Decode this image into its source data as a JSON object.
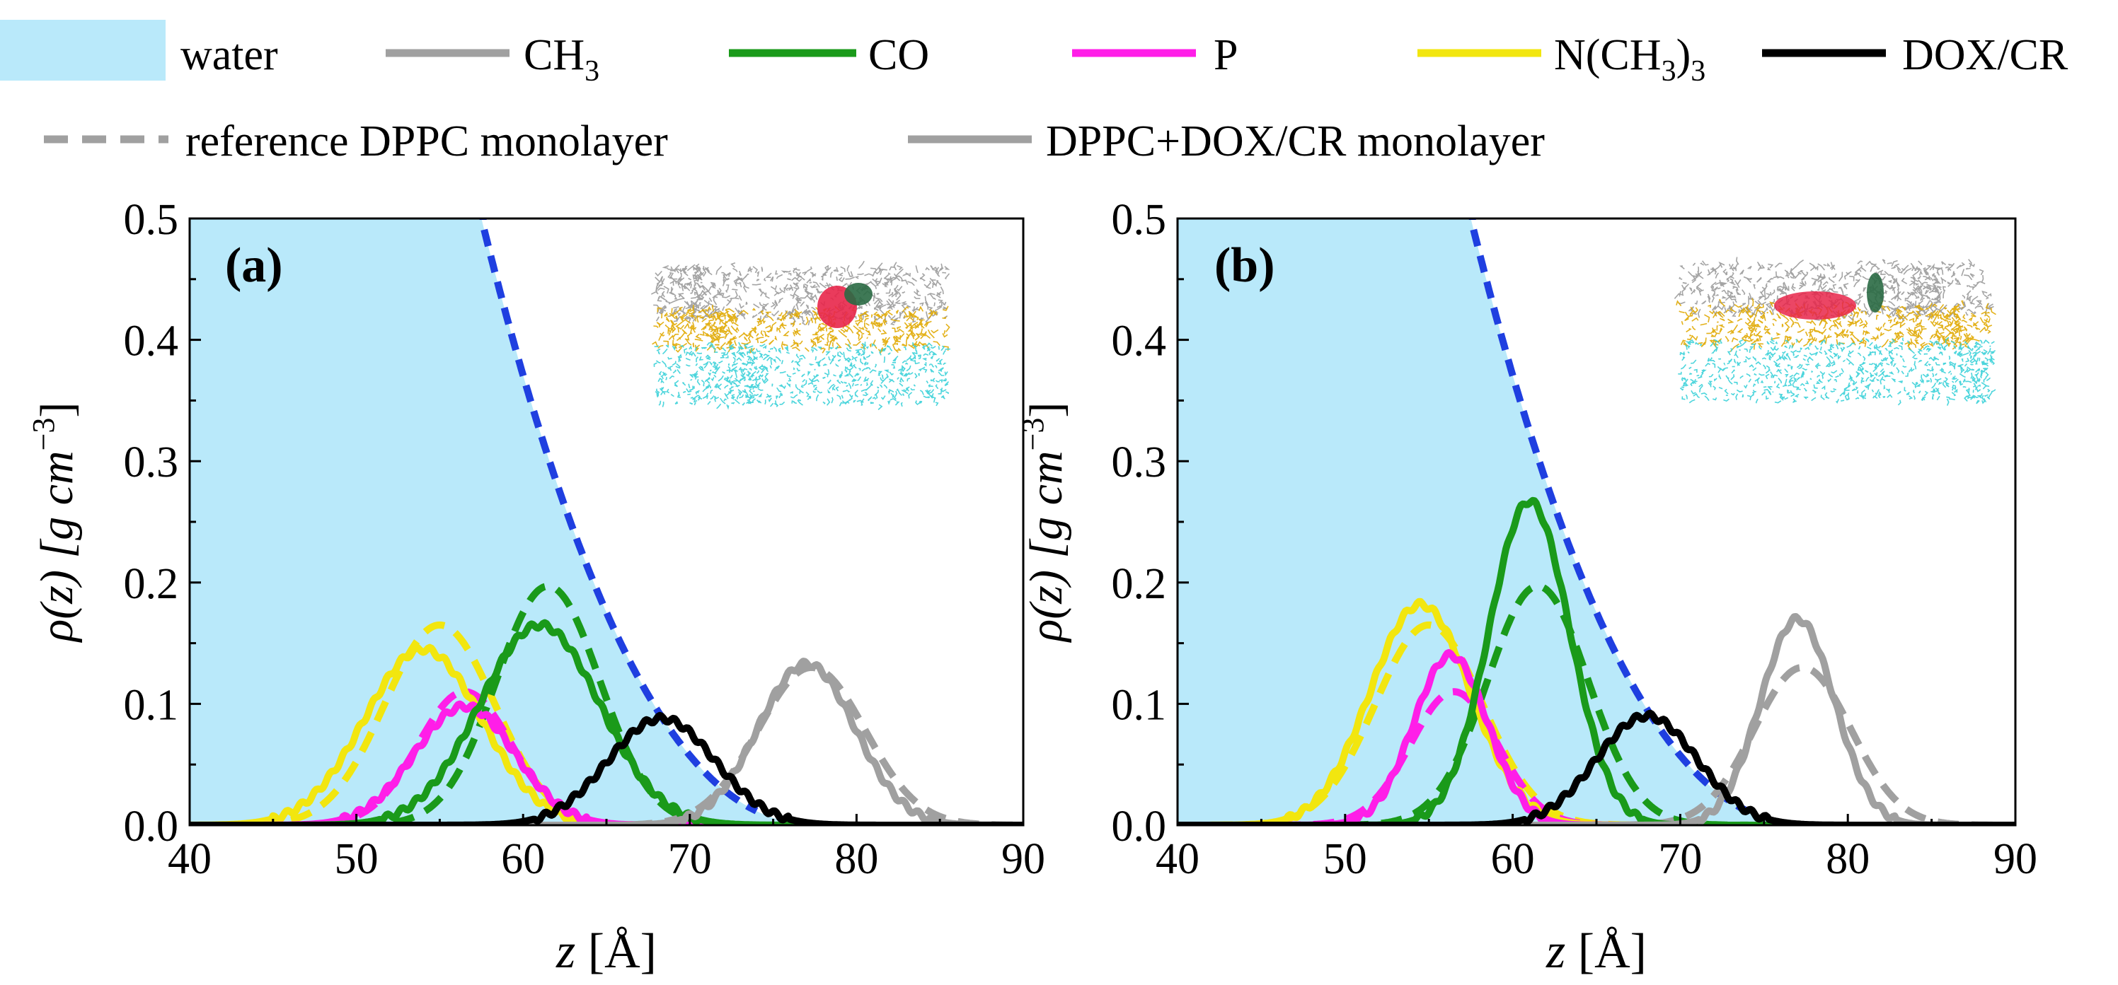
{
  "legend": {
    "items": [
      {
        "label": "water",
        "kind": "patch",
        "color": "#b9e9fa"
      },
      {
        "label": "CH",
        "sub": "3",
        "tail": "",
        "kind": "line",
        "color": "#a0a0a0"
      },
      {
        "label": "CO",
        "kind": "line",
        "color": "#1a9a1a"
      },
      {
        "label": "P",
        "kind": "line",
        "color": "#ff1ee8"
      },
      {
        "label": "N(CH",
        "sub": "3",
        "tail": ")",
        "sub2": "3",
        "kind": "line",
        "color": "#f2e60f"
      },
      {
        "label": "DOX/CR",
        "kind": "line",
        "color": "#000000"
      }
    ],
    "style_items": [
      {
        "label": "reference DPPC monolayer",
        "kind": "dashed",
        "color": "#a0a0a0"
      },
      {
        "label": "DPPC+DOX/CR monolayer",
        "kind": "solid",
        "color": "#a0a0a0"
      }
    ]
  },
  "colors": {
    "water": "#b9e9fa",
    "water_ref_edge": "#1f3fe0",
    "CH3": "#a0a0a0",
    "CO": "#1a9a1a",
    "P": "#ff1ee8",
    "NCH3": "#f2e60f",
    "DOX": "#000000"
  },
  "chart_data": [
    {
      "type": "line",
      "panel_label": "(a)",
      "xlabel": "z",
      "xunit": "[Å]",
      "ylabel": "ρ(z) [g cm",
      "ylabel_sup": "−3",
      "ylabel_tail": "]",
      "xlim": [
        40,
        90
      ],
      "ylim": [
        0,
        0.5
      ],
      "xticks": [
        "40",
        "50",
        "60",
        "70",
        "80",
        "90"
      ],
      "yticks": [
        "0.0",
        "0.1",
        "0.2",
        "0.3",
        "0.4",
        "0.5"
      ],
      "water": {
        "plateau_until": 57.5,
        "decay_end": 78
      },
      "series": [
        {
          "name": "N(CH3)3",
          "color_key": "NCH3",
          "solid": {
            "mu": 54.0,
            "sigma": 3.5,
            "amp": 0.145
          },
          "dashed": {
            "mu": 55.0,
            "sigma": 3.3,
            "amp": 0.165
          }
        },
        {
          "name": "P",
          "color_key": "P",
          "solid": {
            "mu": 56.5,
            "sigma": 3.0,
            "amp": 0.098
          },
          "dashed": {
            "mu": 56.5,
            "sigma": 2.8,
            "amp": 0.11
          }
        },
        {
          "name": "CO",
          "color_key": "CO",
          "solid": {
            "mu": 61.0,
            "sigma": 3.6,
            "amp": 0.165
          },
          "dashed": {
            "mu": 61.5,
            "sigma": 3.1,
            "amp": 0.197
          }
        },
        {
          "name": "CH3",
          "color_key": "CH3",
          "solid": {
            "mu": 77.0,
            "sigma": 2.9,
            "amp": 0.133
          },
          "dashed": {
            "mu": 77.3,
            "sigma": 3.2,
            "amp": 0.13
          }
        },
        {
          "name": "DOX/CR",
          "color_key": "DOX",
          "solid": {
            "mu": 68.3,
            "sigma": 3.2,
            "amp": 0.088
          },
          "dashed": null
        }
      ]
    },
    {
      "type": "line",
      "panel_label": "(b)",
      "xlabel": "z",
      "xunit": "[Å]",
      "ylabel": "ρ(z) [g cm",
      "ylabel_sup": "−3",
      "ylabel_tail": "]",
      "xlim": [
        40,
        90
      ],
      "ylim": [
        0,
        0.5
      ],
      "xticks": [
        "40",
        "50",
        "60",
        "70",
        "80",
        "90"
      ],
      "yticks": [
        "0.0",
        "0.1",
        "0.2",
        "0.3",
        "0.4",
        "0.5"
      ],
      "water": {
        "plateau_until": 57.5,
        "decay_end": 78
      },
      "series": [
        {
          "name": "N(CH3)3",
          "color_key": "NCH3",
          "solid": {
            "mu": 54.5,
            "sigma": 3.0,
            "amp": 0.182
          },
          "dashed": {
            "mu": 55.0,
            "sigma": 3.2,
            "amp": 0.165
          }
        },
        {
          "name": "P",
          "color_key": "P",
          "solid": {
            "mu": 56.3,
            "sigma": 2.2,
            "amp": 0.14
          },
          "dashed": {
            "mu": 56.5,
            "sigma": 2.6,
            "amp": 0.11
          }
        },
        {
          "name": "CO",
          "color_key": "CO",
          "solid": {
            "mu": 61.0,
            "sigma": 2.4,
            "amp": 0.267
          },
          "dashed": {
            "mu": 61.5,
            "sigma": 3.0,
            "amp": 0.197
          }
        },
        {
          "name": "CH3",
          "color_key": "CH3",
          "solid": {
            "mu": 77.0,
            "sigma": 2.2,
            "amp": 0.17
          },
          "dashed": {
            "mu": 77.3,
            "sigma": 2.9,
            "amp": 0.13
          }
        },
        {
          "name": "DOX/CR",
          "color_key": "DOX",
          "solid": {
            "mu": 68.0,
            "sigma": 3.0,
            "amp": 0.09
          },
          "dashed": null
        }
      ]
    }
  ]
}
